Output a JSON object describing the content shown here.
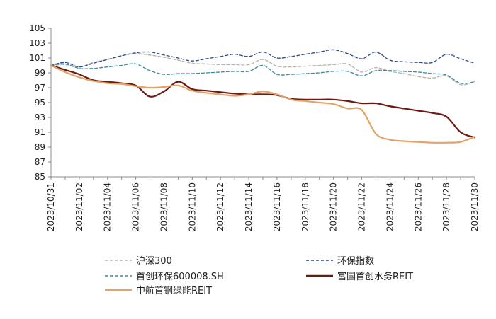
{
  "chart_data": {
    "type": "line",
    "title": "",
    "xlabel": "",
    "ylabel": "",
    "ylim": [
      85,
      105
    ],
    "yticks": [
      85,
      87,
      89,
      91,
      93,
      95,
      97,
      99,
      101,
      103,
      105
    ],
    "x": [
      "2023/10/31",
      "2023/11/01",
      "2023/11/02",
      "2023/11/03",
      "2023/11/04",
      "2023/11/05",
      "2023/11/06",
      "2023/11/07",
      "2023/11/08",
      "2023/11/09",
      "2023/11/10",
      "2023/11/11",
      "2023/11/12",
      "2023/11/13",
      "2023/11/14",
      "2023/11/15",
      "2023/11/16",
      "2023/11/17",
      "2023/11/18",
      "2023/11/19",
      "2023/11/20",
      "2023/11/21",
      "2023/11/22",
      "2023/11/23",
      "2023/11/24",
      "2023/11/25",
      "2023/11/26",
      "2023/11/27",
      "2023/11/28",
      "2023/11/29",
      "2023/11/30"
    ],
    "xticks": [
      "2023/10/31",
      "2023/11/02",
      "2023/11/04",
      "2023/11/06",
      "2023/11/08",
      "2023/11/10",
      "2023/11/12",
      "2023/11/14",
      "2023/11/16",
      "2023/11/18",
      "2023/11/20",
      "2023/11/22",
      "2023/11/24",
      "2023/11/26",
      "2023/11/28",
      "2023/11/30"
    ],
    "series": [
      {
        "name": "沪深300",
        "color": "#b8b3a4",
        "dash": "dashed",
        "values": [
          100,
          100.1,
          99.8,
          100.4,
          100.8,
          101.3,
          101.6,
          101.4,
          101.1,
          100.7,
          100.3,
          100.2,
          100.1,
          100.1,
          100.1,
          100.8,
          99.9,
          99.8,
          99.9,
          100,
          100.1,
          100.2,
          99.1,
          99.7,
          99.2,
          98.9,
          98.5,
          98.3,
          98.6,
          97.4,
          97.8
        ]
      },
      {
        "name": "环保指数",
        "color": "#2b4c8a",
        "dash": "dashed",
        "values": [
          100,
          100.4,
          99.8,
          100.3,
          100.8,
          101.3,
          101.7,
          101.8,
          101.4,
          101,
          100.6,
          100.9,
          101.2,
          101.5,
          101.2,
          101.8,
          101,
          101.2,
          101.5,
          101.8,
          102.1,
          101.6,
          100.9,
          101.8,
          100.7,
          100.5,
          100.4,
          100.4,
          101.5,
          100.9,
          100.3
        ]
      },
      {
        "name": "首创环保600008.SH",
        "color": "#3a8aa0",
        "dash": "dashed",
        "values": [
          100,
          100.2,
          99.6,
          99.6,
          99.8,
          100,
          100.2,
          99.3,
          98.8,
          98.9,
          98.9,
          99,
          99.1,
          99.2,
          99.2,
          100,
          98.8,
          98.8,
          98.9,
          99,
          99.2,
          99.2,
          98.6,
          99.3,
          99.3,
          99.2,
          99.1,
          98.9,
          98.7,
          97.6,
          97.8
        ]
      },
      {
        "name": "富国首创水务REIT",
        "color": "#6e1a10",
        "dash": "solid",
        "values": [
          100,
          99.4,
          98.8,
          98,
          97.8,
          97.6,
          97.3,
          95.8,
          96.5,
          97.8,
          96.8,
          96.6,
          96.4,
          96.2,
          96.1,
          96.1,
          96,
          95.5,
          95.4,
          95.4,
          95.4,
          95.2,
          94.9,
          94.9,
          94.5,
          94.2,
          93.9,
          93.6,
          93.1,
          91,
          90.3
        ]
      },
      {
        "name": "中航首钢绿能REIT",
        "color": "#e2a36a",
        "dash": "solid",
        "values": [
          100,
          99.1,
          98.4,
          97.9,
          97.6,
          97.5,
          97.2,
          97,
          97.1,
          97.3,
          96.6,
          96.3,
          96.1,
          95.9,
          96.1,
          96.5,
          96.1,
          95.4,
          95.2,
          95,
          94.8,
          94.2,
          94,
          90.8,
          90,
          89.8,
          89.7,
          89.6,
          89.6,
          89.7,
          90.4
        ]
      }
    ],
    "legend_position": "bottom"
  }
}
